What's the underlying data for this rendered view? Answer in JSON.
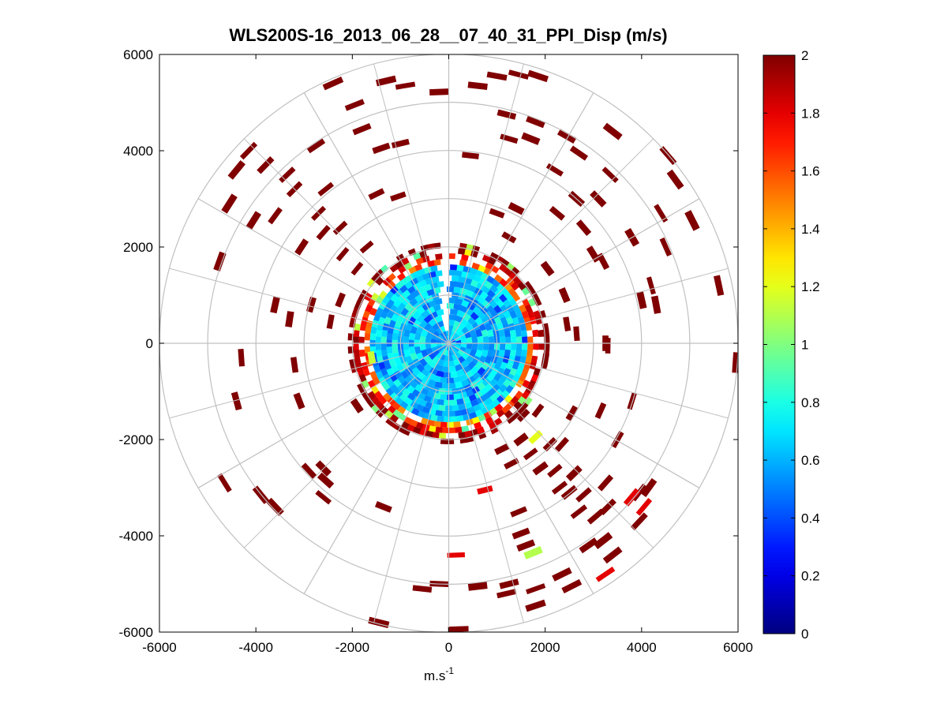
{
  "chart_data": {
    "type": "heatmap",
    "title": "WLS200S-16_2013_06_28__07_40_31_PPI_Disp (m/s)",
    "xlabel": "m.s",
    "xlabel_superscript": "-1",
    "ylabel": "",
    "xlim": [
      -6000,
      6000
    ],
    "ylim": [
      -6000,
      6000
    ],
    "x_ticks": [
      -6000,
      -4000,
      -2000,
      0,
      2000,
      4000,
      6000
    ],
    "y_ticks": [
      6000,
      4000,
      2000,
      0,
      -2000,
      -4000,
      -6000
    ],
    "x_tick_labels": [
      "-6000",
      "-4000",
      "-2000",
      "0",
      "2000",
      "4000",
      "6000"
    ],
    "y_tick_labels": [
      "6000",
      "4000",
      "2000",
      "0",
      "-2000",
      "-4000",
      "-6000"
    ],
    "polar_grid": {
      "range_rings_m": [
        1000,
        2000,
        3000,
        4000,
        5000,
        6000
      ],
      "spoke_angles_deg": [
        0,
        30,
        60,
        90,
        120,
        150,
        180,
        210,
        240,
        270,
        300,
        330
      ],
      "inner_spoke_angles_deg": [
        15,
        45,
        75,
        105,
        135,
        165,
        195,
        225,
        255,
        285,
        315,
        345
      ]
    },
    "colorbar": {
      "min": 0,
      "max": 2,
      "ticks": [
        0,
        0.2,
        0.4,
        0.6,
        0.8,
        1,
        1.2,
        1.4,
        1.6,
        1.8,
        2
      ],
      "tick_labels": [
        "0",
        "0.2",
        "0.4",
        "0.6",
        "0.8",
        "1",
        "1.2",
        "1.4",
        "1.6",
        "1.8",
        "2"
      ],
      "colormap": "jet"
    },
    "dense_core": {
      "radius_m": 1650,
      "rim_radius_m": 2050,
      "core_value_range": [
        0.45,
        0.85
      ],
      "rim_value_range": [
        1.2,
        2.0
      ],
      "gap_azimuth_deg": [
        -4,
        4
      ]
    },
    "scatter_cells": [
      {
        "x": -2400,
        "y": 5400,
        "v": 2
      },
      {
        "x": -1300,
        "y": 5450,
        "v": 2
      },
      {
        "x": -900,
        "y": 5350,
        "v": 2
      },
      {
        "x": -200,
        "y": 5220,
        "v": 2
      },
      {
        "x": 600,
        "y": 5350,
        "v": 2
      },
      {
        "x": 1000,
        "y": 5550,
        "v": 2
      },
      {
        "x": 1450,
        "y": 5580,
        "v": 2
      },
      {
        "x": 1850,
        "y": 5550,
        "v": 2
      },
      {
        "x": -1950,
        "y": 4950,
        "v": 2
      },
      {
        "x": 1200,
        "y": 4750,
        "v": 2
      },
      {
        "x": 1800,
        "y": 4600,
        "v": 2
      },
      {
        "x": -1800,
        "y": 4450,
        "v": 2
      },
      {
        "x": -1400,
        "y": 4050,
        "v": 2
      },
      {
        "x": -1000,
        "y": 4150,
        "v": 2
      },
      {
        "x": 1250,
        "y": 4250,
        "v": 2
      },
      {
        "x": 1700,
        "y": 4250,
        "v": 2
      },
      {
        "x": 2450,
        "y": 4300,
        "v": 2
      },
      {
        "x": 3400,
        "y": 4400,
        "v": 2
      },
      {
        "x": -4150,
        "y": 4000,
        "v": 2
      },
      {
        "x": -2750,
        "y": 4100,
        "v": 2
      },
      {
        "x": 450,
        "y": 3900,
        "v": 2
      },
      {
        "x": 2700,
        "y": 3950,
        "v": 2
      },
      {
        "x": 4550,
        "y": 3900,
        "v": 2
      },
      {
        "x": -4400,
        "y": 3600,
        "v": 2
      },
      {
        "x": -3800,
        "y": 3700,
        "v": 2
      },
      {
        "x": -3350,
        "y": 3500,
        "v": 2
      },
      {
        "x": 2200,
        "y": 3600,
        "v": 2
      },
      {
        "x": 3350,
        "y": 3500,
        "v": 2
      },
      {
        "x": 4700,
        "y": 3400,
        "v": 2
      },
      {
        "x": -2550,
        "y": 3200,
        "v": 2
      },
      {
        "x": -3200,
        "y": 3200,
        "v": 2
      },
      {
        "x": 2650,
        "y": 3000,
        "v": 2
      },
      {
        "x": 3100,
        "y": 3000,
        "v": 2
      },
      {
        "x": -1500,
        "y": 3100,
        "v": 2
      },
      {
        "x": -1050,
        "y": 3050,
        "v": 2
      },
      {
        "x": -4550,
        "y": 2900,
        "v": 2
      },
      {
        "x": -2700,
        "y": 2700,
        "v": 2
      },
      {
        "x": -3600,
        "y": 2650,
        "v": 2
      },
      {
        "x": -4050,
        "y": 2550,
        "v": 2
      },
      {
        "x": 1400,
        "y": 2800,
        "v": 2
      },
      {
        "x": 1000,
        "y": 2700,
        "v": 2
      },
      {
        "x": 2250,
        "y": 2700,
        "v": 2
      },
      {
        "x": 2800,
        "y": 2400,
        "v": 2
      },
      {
        "x": 3800,
        "y": 2200,
        "v": 2
      },
      {
        "x": 4400,
        "y": 2700,
        "v": 2
      },
      {
        "x": 5050,
        "y": 2550,
        "v": 2
      },
      {
        "x": -2600,
        "y": 2300,
        "v": 2
      },
      {
        "x": -2250,
        "y": 2400,
        "v": 2
      },
      {
        "x": -3050,
        "y": 2000,
        "v": 2
      },
      {
        "x": -2200,
        "y": 1850,
        "v": 2
      },
      {
        "x": -1700,
        "y": 2000,
        "v": 2
      },
      {
        "x": 1250,
        "y": 2200,
        "v": 2
      },
      {
        "x": 3000,
        "y": 1850,
        "v": 2
      },
      {
        "x": 3200,
        "y": 1700,
        "v": 2
      },
      {
        "x": 4500,
        "y": 2000,
        "v": 2
      },
      {
        "x": -4750,
        "y": 1700,
        "v": 2
      },
      {
        "x": -1900,
        "y": 1550,
        "v": 2
      },
      {
        "x": 2050,
        "y": 1550,
        "v": 2
      },
      {
        "x": 4200,
        "y": 1200,
        "v": 2
      },
      {
        "x": 5600,
        "y": 1200,
        "v": 2
      },
      {
        "x": -3600,
        "y": 800,
        "v": 2
      },
      {
        "x": -2850,
        "y": 800,
        "v": 2
      },
      {
        "x": -2250,
        "y": 900,
        "v": 2
      },
      {
        "x": 2400,
        "y": 1000,
        "v": 2
      },
      {
        "x": 4000,
        "y": 900,
        "v": 2
      },
      {
        "x": 4300,
        "y": 800,
        "v": 2
      },
      {
        "x": -3300,
        "y": 500,
        "v": 2
      },
      {
        "x": -2450,
        "y": 450,
        "v": 2
      },
      {
        "x": 2450,
        "y": 400,
        "v": 2
      },
      {
        "x": 2650,
        "y": 200,
        "v": 2
      },
      {
        "x": 3250,
        "y": 0,
        "v": 2
      },
      {
        "x": 3300,
        "y": -50,
        "v": 2
      },
      {
        "x": -4300,
        "y": -300,
        "v": 2
      },
      {
        "x": -3200,
        "y": -450,
        "v": 2
      },
      {
        "x": 5950,
        "y": -400,
        "v": 2
      },
      {
        "x": -1600,
        "y": -300,
        "v": 1.15
      },
      {
        "x": 2000,
        "y": -350,
        "v": 2
      },
      {
        "x": -4400,
        "y": -1200,
        "v": 2
      },
      {
        "x": -3100,
        "y": -1200,
        "v": 2
      },
      {
        "x": 3800,
        "y": -1200,
        "v": 2
      },
      {
        "x": 3150,
        "y": -1400,
        "v": 2
      },
      {
        "x": -1900,
        "y": -1300,
        "v": 2
      },
      {
        "x": 1550,
        "y": -1500,
        "v": 2
      },
      {
        "x": 1850,
        "y": -1400,
        "v": 2
      },
      {
        "x": 2550,
        "y": -1450,
        "v": 2
      },
      {
        "x": 1500,
        "y": -2000,
        "v": 2
      },
      {
        "x": 1800,
        "y": -1950,
        "v": 1.2
      },
      {
        "x": 1100,
        "y": -2200,
        "v": 2
      },
      {
        "x": 1700,
        "y": -2300,
        "v": 2
      },
      {
        "x": 2100,
        "y": -2100,
        "v": 2
      },
      {
        "x": 2350,
        "y": -2100,
        "v": 2
      },
      {
        "x": 3500,
        "y": -2000,
        "v": 2
      },
      {
        "x": 1300,
        "y": -2500,
        "v": 2
      },
      {
        "x": 1900,
        "y": -2600,
        "v": 2
      },
      {
        "x": 2200,
        "y": -2650,
        "v": 2
      },
      {
        "x": 2600,
        "y": -2700,
        "v": 2
      },
      {
        "x": -2600,
        "y": -2600,
        "v": 2
      },
      {
        "x": -2900,
        "y": -2650,
        "v": 2
      },
      {
        "x": 3250,
        "y": -2900,
        "v": 2
      },
      {
        "x": -4650,
        "y": -2900,
        "v": 2
      },
      {
        "x": -2550,
        "y": -2850,
        "v": 2
      },
      {
        "x": 2300,
        "y": -3000,
        "v": 2
      },
      {
        "x": 2500,
        "y": -3100,
        "v": 2
      },
      {
        "x": 4150,
        "y": -3000,
        "v": 2
      },
      {
        "x": 3950,
        "y": -3100,
        "v": 2
      },
      {
        "x": 750,
        "y": -3050,
        "v": 1.8
      },
      {
        "x": 2800,
        "y": -3150,
        "v": 2
      },
      {
        "x": 3300,
        "y": -3400,
        "v": 2
      },
      {
        "x": 3800,
        "y": -3200,
        "v": 1.8
      },
      {
        "x": 4050,
        "y": -3400,
        "v": 1.8
      },
      {
        "x": -3600,
        "y": -3400,
        "v": 2
      },
      {
        "x": -2600,
        "y": -3200,
        "v": 2
      },
      {
        "x": -1350,
        "y": -3400,
        "v": 2
      },
      {
        "x": -3900,
        "y": -3150,
        "v": 2
      },
      {
        "x": 1450,
        "y": -3500,
        "v": 2
      },
      {
        "x": 2700,
        "y": -3500,
        "v": 2
      },
      {
        "x": 3050,
        "y": -3600,
        "v": 2
      },
      {
        "x": 3950,
        "y": -3700,
        "v": 2
      },
      {
        "x": 1500,
        "y": -3950,
        "v": 2
      },
      {
        "x": 3200,
        "y": -4100,
        "v": 2
      },
      {
        "x": 2900,
        "y": -4200,
        "v": 2
      },
      {
        "x": 3400,
        "y": -4400,
        "v": 2
      },
      {
        "x": 1750,
        "y": -4350,
        "v": 1.1
      },
      {
        "x": 1600,
        "y": -4200,
        "v": 2
      },
      {
        "x": 150,
        "y": -4400,
        "v": 1.8
      },
      {
        "x": 3250,
        "y": -4800,
        "v": 1.8
      },
      {
        "x": 2350,
        "y": -4800,
        "v": 2
      },
      {
        "x": 2550,
        "y": -5050,
        "v": 2
      },
      {
        "x": 1250,
        "y": -5000,
        "v": 2
      },
      {
        "x": 1800,
        "y": -5100,
        "v": 2
      },
      {
        "x": 1200,
        "y": -5200,
        "v": 2
      },
      {
        "x": -550,
        "y": -5100,
        "v": 2
      },
      {
        "x": -200,
        "y": -5000,
        "v": 2
      },
      {
        "x": 600,
        "y": -5050,
        "v": 2
      },
      {
        "x": 1800,
        "y": -5450,
        "v": 2
      },
      {
        "x": -1450,
        "y": -5800,
        "v": 2
      },
      {
        "x": 200,
        "y": -5950,
        "v": 2
      }
    ]
  }
}
